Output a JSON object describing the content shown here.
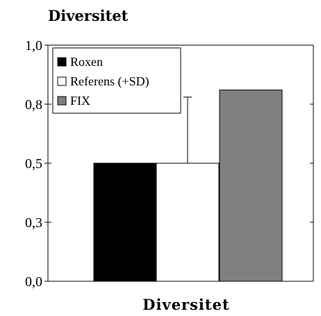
{
  "chart_data": {
    "type": "bar",
    "title": "Diversitet",
    "xlabel": "Diversitet",
    "ylabel": "",
    "ylim": [
      0,
      1.0
    ],
    "yticks": [
      0.0,
      0.25,
      0.5,
      0.75,
      1.0
    ],
    "ytick_labels": [
      "0,0",
      "0,3",
      "0,5",
      "0,8",
      "1,0"
    ],
    "categories": [
      "Diversitet"
    ],
    "series": [
      {
        "name": "Roxen",
        "values": [
          0.5
        ],
        "color": "#000000"
      },
      {
        "name": "Referens (+SD)",
        "values": [
          0.5
        ],
        "error_plus": [
          0.28
        ],
        "color": "#ffffff"
      },
      {
        "name": "FIX",
        "values": [
          0.81
        ],
        "color": "#808080"
      }
    ],
    "legend": "top-left",
    "grid": false
  }
}
